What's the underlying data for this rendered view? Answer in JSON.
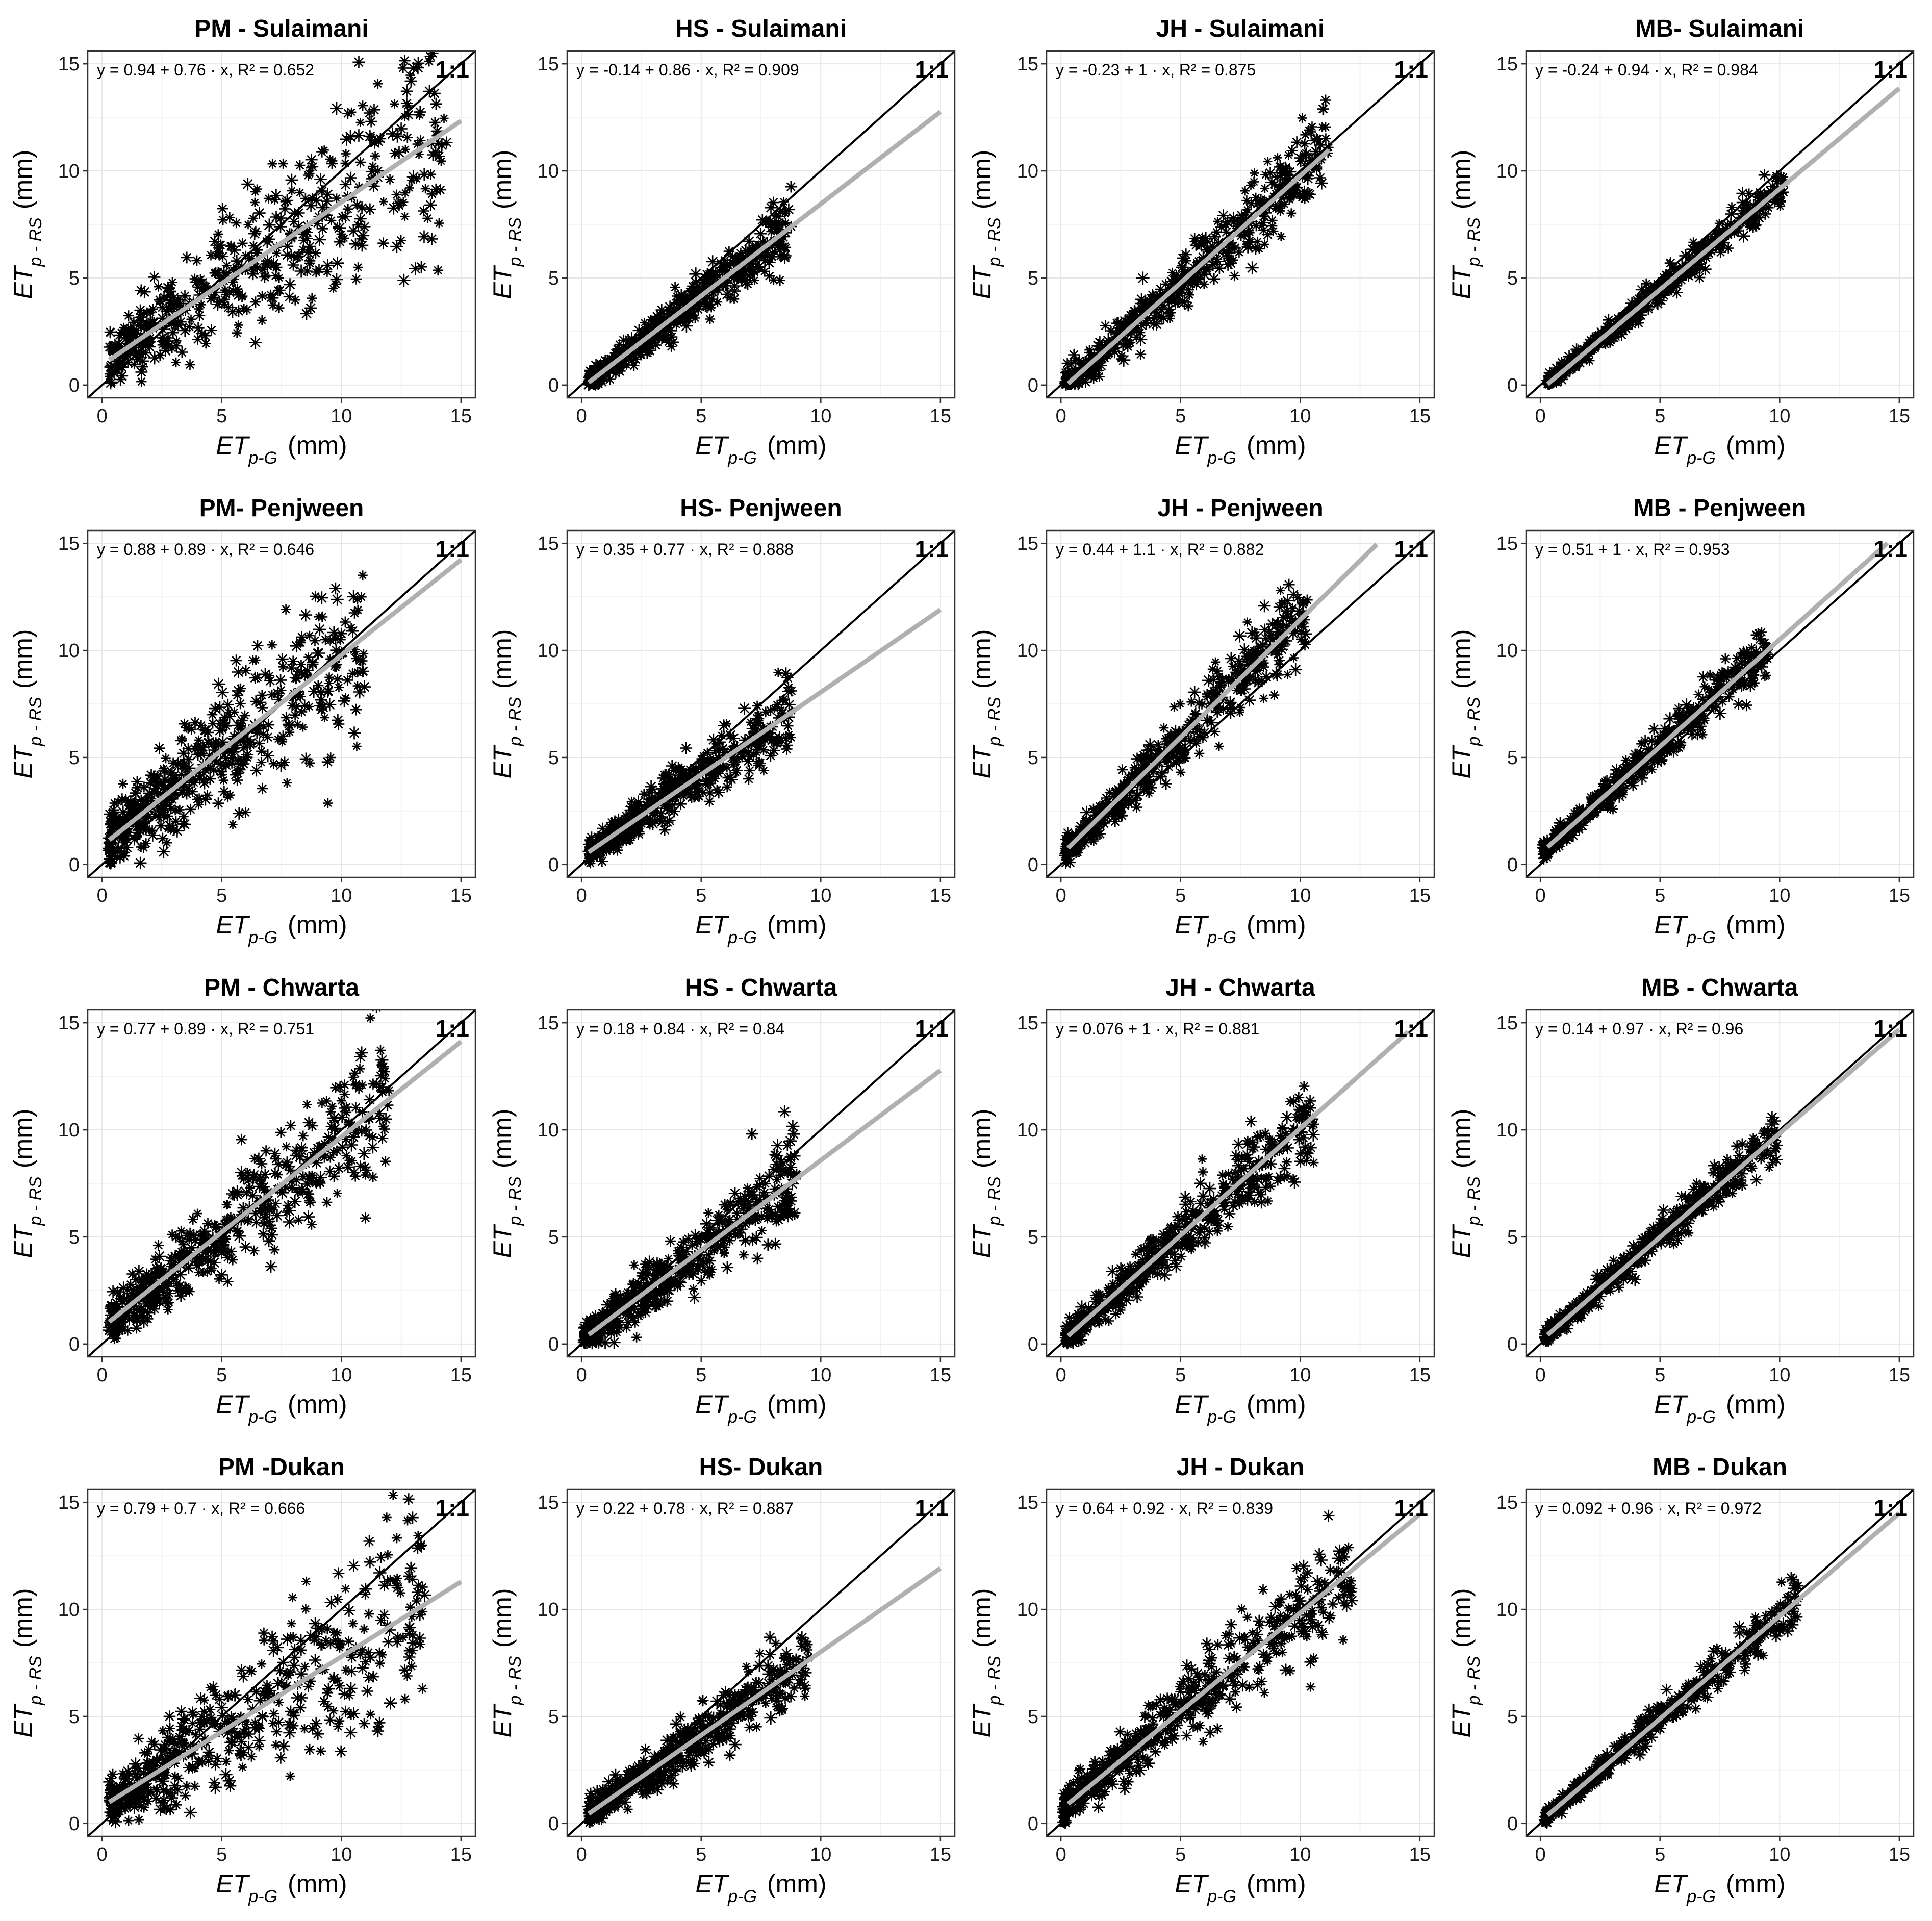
{
  "chart_data": {
    "type": "scatter",
    "layout": "4x4 grid",
    "shared": {
      "xlabel": "ET",
      "xlabel_sub": "p-G",
      "xlabel_unit": "(mm)",
      "ylabel": "ET",
      "ylabel_sub": "p - RS",
      "ylabel_unit": "(mm)",
      "xlim": [
        -0.6,
        15.6
      ],
      "ylim": [
        -0.6,
        15.6
      ],
      "ticks": [
        0,
        5,
        10,
        15
      ],
      "reference_line_label": "1:1",
      "marker": "*",
      "marker_color": "#000000",
      "fit_line_color": "#b0b0b0",
      "reference_line_color": "#000000"
    },
    "panels": [
      {
        "title": "PM - Sulaimani",
        "equation": "y = 0.94 + 0.76 · x,  R² = 0.652",
        "intercept": 0.94,
        "slope": 0.76,
        "r2": 0.652,
        "x_range": [
          0.3,
          14.5
        ],
        "fit_end": 15
      },
      {
        "title": "HS - Sulaimani",
        "equation": "y = -0.14 + 0.86 · x,  R² = 0.909",
        "intercept": -0.14,
        "slope": 0.86,
        "r2": 0.909,
        "x_range": [
          0.3,
          8.8
        ],
        "fit_end": 15
      },
      {
        "title": "JH - Sulaimani",
        "equation": "y = -0.23 + 1 · x,  R² = 0.875",
        "intercept": -0.23,
        "slope": 1.0,
        "r2": 0.875,
        "x_range": [
          0.2,
          11.2
        ],
        "fit_end": 11.2
      },
      {
        "title": "MB- Sulaimani",
        "equation": "y = -0.24 + 0.94 · x,  R² = 0.984",
        "intercept": -0.24,
        "slope": 0.94,
        "r2": 0.984,
        "x_range": [
          0.3,
          10.2
        ],
        "fit_end": 15
      },
      {
        "title": "PM- Penjween",
        "equation": "y = 0.88 + 0.89 · x,  R² = 0.646",
        "intercept": 0.88,
        "slope": 0.89,
        "r2": 0.646,
        "x_range": [
          0.3,
          11.0
        ],
        "fit_end": 15
      },
      {
        "title": "HS- Penjween",
        "equation": "y = 0.35 + 0.77 · x,  R² = 0.888",
        "intercept": 0.35,
        "slope": 0.77,
        "r2": 0.888,
        "x_range": [
          0.3,
          8.8
        ],
        "fit_end": 15
      },
      {
        "title": "JH - Penjween",
        "equation": "y = 0.44 + 1.1 · x,  R² = 0.882",
        "intercept": 0.44,
        "slope": 1.1,
        "r2": 0.882,
        "x_range": [
          0.2,
          10.3
        ],
        "fit_end": 13.2
      },
      {
        "title": "MB - Penjween",
        "equation": "y = 0.51 + 1 · x,  R² = 0.953",
        "intercept": 0.51,
        "slope": 1.0,
        "r2": 0.953,
        "x_range": [
          0.1,
          9.5
        ],
        "fit_end": 14.5
      },
      {
        "title": "PM - Chwarta",
        "equation": "y = 0.77 + 0.89 · x,  R² = 0.751",
        "intercept": 0.77,
        "slope": 0.89,
        "r2": 0.751,
        "x_range": [
          0.3,
          12.0
        ],
        "fit_end": 15
      },
      {
        "title": "HS - Chwarta",
        "equation": "y = 0.18 + 0.84 · x,  R² = 0.84",
        "intercept": 0.18,
        "slope": 0.84,
        "r2": 0.84,
        "x_range": [
          0.1,
          9.0
        ],
        "fit_end": 15
      },
      {
        "title": "JH - Chwarta",
        "equation": "y = 0.076 + 1 · x,  R² = 0.881",
        "intercept": 0.076,
        "slope": 1.0,
        "r2": 0.881,
        "x_range": [
          0.2,
          10.6
        ],
        "fit_end": 14.5
      },
      {
        "title": "MB - Chwarta",
        "equation": "y = 0.14 + 0.97 · x,  R² = 0.96",
        "intercept": 0.14,
        "slope": 0.97,
        "r2": 0.96,
        "x_range": [
          0.2,
          9.9
        ],
        "fit_end": 15
      },
      {
        "title": "PM -Dukan",
        "equation": "y = 0.79 + 0.7 · x,  R² = 0.666",
        "intercept": 0.79,
        "slope": 0.7,
        "r2": 0.666,
        "x_range": [
          0.3,
          13.5
        ],
        "fit_end": 15
      },
      {
        "title": "HS- Dukan",
        "equation": "y = 0.22 + 0.78 · x,  R² = 0.887",
        "intercept": 0.22,
        "slope": 0.78,
        "r2": 0.887,
        "x_range": [
          0.3,
          9.5
        ],
        "fit_end": 15
      },
      {
        "title": "JH - Dukan",
        "equation": "y = 0.64 + 0.92 · x,  R² = 0.839",
        "intercept": 0.64,
        "slope": 0.92,
        "r2": 0.839,
        "x_range": [
          0.1,
          12.2
        ],
        "fit_end": 15
      },
      {
        "title": "MB - Dukan",
        "equation": "y = 0.092 + 0.96 · x,  R² = 0.972",
        "intercept": 0.092,
        "slope": 0.96,
        "r2": 0.972,
        "x_range": [
          0.2,
          10.8
        ],
        "fit_end": 15
      }
    ]
  }
}
